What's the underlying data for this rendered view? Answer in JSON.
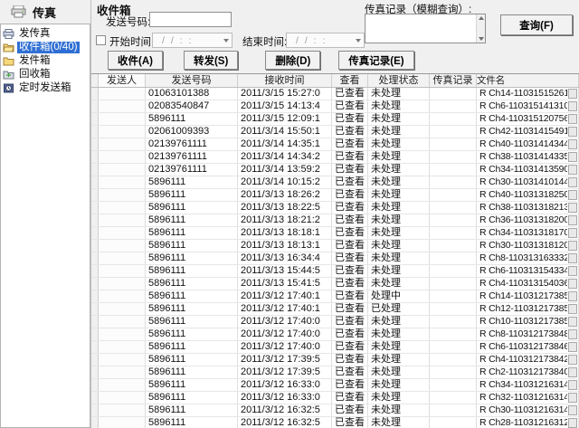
{
  "colors": {
    "selection_blue": "#2f6fd3",
    "panel_gray": "#f0f0f0",
    "grid_line": "#dedede"
  },
  "sidebar": {
    "header": "传真",
    "items": [
      {
        "label": "发传真",
        "icon": "fax-icon",
        "selected": false
      },
      {
        "label": "收件箱(0/40)",
        "icon": "inbox-icon",
        "selected": true
      },
      {
        "label": "发件箱",
        "icon": "outbox-icon",
        "selected": false
      },
      {
        "label": "回收箱",
        "icon": "recycle-icon",
        "selected": false
      },
      {
        "label": "定时发送箱",
        "icon": "timer-icon",
        "selected": false
      }
    ]
  },
  "filter": {
    "title": "收件箱",
    "send_number_label": "发送号码:",
    "send_number_value": "",
    "start_checkbox_checked": false,
    "start_time_label": "开始时间:",
    "start_time_value": "/ /  : :",
    "end_time_label": "结束时间:",
    "end_time_value": "/ /  : :",
    "fax_record_label": "传真记录（模糊查询）:",
    "fax_record_value": "",
    "search_button": "查询(F)"
  },
  "toolbar": {
    "buttons": [
      "收件(A)",
      "转发(S)",
      "删除(D)",
      "传真记录(E)"
    ]
  },
  "table": {
    "columns": [
      "发送人",
      "发送号码",
      "接收时间",
      "查看",
      "处理状态",
      "传真记录",
      "文件名"
    ],
    "rows": [
      [
        "",
        "01063101388",
        "2011/3/15 15:27:0",
        "已查看",
        "未处理",
        "",
        "R Ch14-11031515261"
      ],
      [
        "",
        "02083540847",
        "2011/3/15 14:13:4",
        "已查看",
        "未处理",
        "",
        "R Ch6-110315141310"
      ],
      [
        "",
        "5896111",
        "2011/3/15 12:09:1",
        "已查看",
        "未处理",
        "",
        "R Ch4-110315120756"
      ],
      [
        "",
        "02061009393",
        "2011/3/14 15:50:1",
        "已查看",
        "未处理",
        "",
        "R Ch42-11031415491"
      ],
      [
        "",
        "02139761111",
        "2011/3/14 14:35:1",
        "已查看",
        "未处理",
        "",
        "R Ch40-11031414344"
      ],
      [
        "",
        "02139761111",
        "2011/3/14 14:34:2",
        "已查看",
        "未处理",
        "",
        "R Ch38-11031414335"
      ],
      [
        "",
        "02139761111",
        "2011/3/14 13:59:2",
        "已查看",
        "未处理",
        "",
        "R Ch34-11031413590"
      ],
      [
        "",
        "5896111",
        "2011/3/14 10:15:2",
        "已查看",
        "未处理",
        "",
        "R Ch30-11031410144"
      ],
      [
        "",
        "5896111",
        "2011/3/13 18:26:2",
        "已查看",
        "未处理",
        "",
        "R Ch40-11031318250"
      ],
      [
        "",
        "5896111",
        "2011/3/13 18:22:5",
        "已查看",
        "未处理",
        "",
        "R Ch38-11031318213"
      ],
      [
        "",
        "5896111",
        "2011/3/13 18:21:2",
        "已查看",
        "未处理",
        "",
        "R Ch36-11031318200"
      ],
      [
        "",
        "5896111",
        "2011/3/13 18:18:1",
        "已查看",
        "未处理",
        "",
        "R Ch34-11031318170"
      ],
      [
        "",
        "5896111",
        "2011/3/13 18:13:1",
        "已查看",
        "未处理",
        "",
        "R Ch30-11031318120"
      ],
      [
        "",
        "5896111",
        "2011/3/13 16:34:4",
        "已查看",
        "未处理",
        "",
        "R Ch8-110313163332"
      ],
      [
        "",
        "5896111",
        "2011/3/13 15:44:5",
        "已查看",
        "未处理",
        "",
        "R Ch6-110313154334"
      ],
      [
        "",
        "5896111",
        "2011/3/13 15:41:5",
        "已查看",
        "未处理",
        "",
        "R Ch4-110313154036"
      ],
      [
        "",
        "5896111",
        "2011/3/12 17:40:1",
        "已查看",
        "处理中",
        "",
        "R Ch14-11031217385"
      ],
      [
        "",
        "5896111",
        "2011/3/12 17:40:1",
        "已查看",
        "已处理",
        "",
        "R Ch12-11031217385"
      ],
      [
        "",
        "5896111",
        "2011/3/12 17:40:0",
        "已查看",
        "未处理",
        "",
        "R Ch10-11031217385"
      ],
      [
        "",
        "5896111",
        "2011/3/12 17:40:0",
        "已查看",
        "未处理",
        "",
        "R Ch8-110312173848"
      ],
      [
        "",
        "5896111",
        "2011/3/12 17:40:0",
        "已查看",
        "未处理",
        "",
        "R Ch6-110312173846"
      ],
      [
        "",
        "5896111",
        "2011/3/12 17:39:5",
        "已查看",
        "未处理",
        "",
        "R Ch4-110312173842"
      ],
      [
        "",
        "5896111",
        "2011/3/12 17:39:5",
        "已查看",
        "未处理",
        "",
        "R Ch2-110312173840"
      ],
      [
        "",
        "5896111",
        "2011/3/12 16:33:0",
        "已查看",
        "未处理",
        "",
        "R Ch34-11031216314"
      ],
      [
        "",
        "5896111",
        "2011/3/12 16:33:0",
        "已查看",
        "未处理",
        "",
        "R Ch32-11031216314"
      ],
      [
        "",
        "5896111",
        "2011/3/12 16:32:5",
        "已查看",
        "未处理",
        "",
        "R Ch30-11031216314"
      ],
      [
        "",
        "5896111",
        "2011/3/12 16:32:5",
        "已查看",
        "未处理",
        "",
        "R Ch28-11031216312"
      ]
    ]
  }
}
